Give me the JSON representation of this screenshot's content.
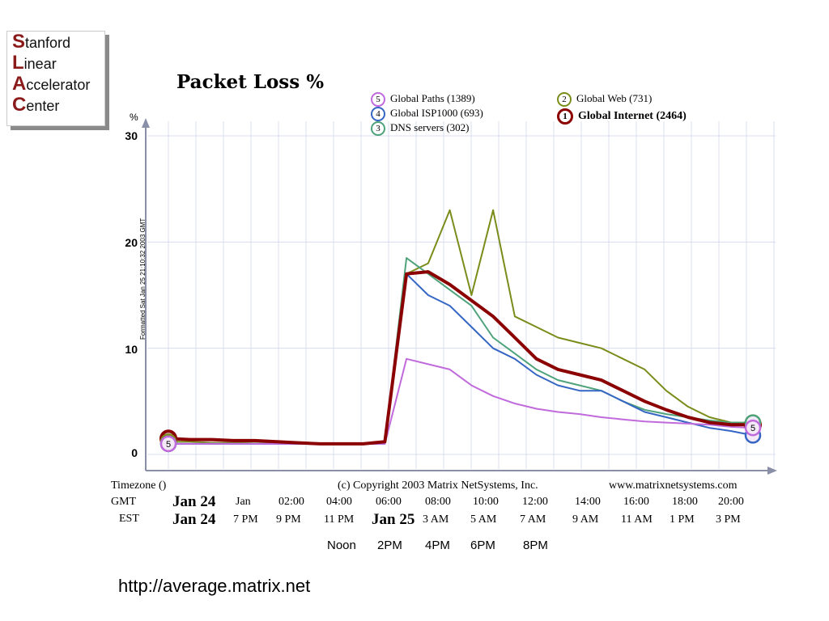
{
  "logo": {
    "lines": [
      {
        "cap": "S",
        "rest": "tanford"
      },
      {
        "cap": "L",
        "rest": "inear"
      },
      {
        "cap": "A",
        "rest": "ccelerator"
      },
      {
        "cap": "C",
        "rest": "enter"
      }
    ]
  },
  "chart_data": {
    "type": "line",
    "title": "Packet Loss %",
    "ylabel": "%",
    "ylim": [
      0,
      30
    ],
    "yticks": [
      "0",
      "10",
      "20",
      "30"
    ],
    "side_note": "Formatted Sat Jan 25 21:10:32 2003 GMT",
    "x_hours": [
      0,
      1,
      2,
      3,
      4,
      5,
      6,
      7,
      8,
      9,
      10,
      11,
      12,
      13,
      14,
      15,
      16,
      17,
      18,
      19,
      20,
      21,
      22,
      23,
      24,
      25,
      26,
      27
    ],
    "series": [
      {
        "name": "Global Internet (2464)",
        "badge": "1",
        "color": "#8b0000",
        "width": 4,
        "values": [
          1.5,
          1.4,
          1.4,
          1.3,
          1.3,
          1.2,
          1.1,
          1.0,
          1.0,
          1.0,
          1.2,
          17.0,
          17.2,
          16.0,
          14.5,
          13.0,
          11.0,
          9.0,
          8.0,
          7.5,
          7.0,
          6.0,
          5.0,
          4.2,
          3.5,
          3.0,
          2.8,
          2.8
        ]
      },
      {
        "name": "Global Web (731)",
        "badge": "2",
        "color": "#7a8c1a",
        "width": 2,
        "values": [
          1.2,
          1.2,
          1.1,
          1.1,
          1.2,
          1.1,
          1.0,
          1.0,
          1.0,
          1.0,
          1.2,
          17.0,
          18.0,
          23.0,
          15.0,
          23.0,
          13.0,
          12.0,
          11.0,
          10.5,
          10.0,
          9.0,
          8.0,
          6.0,
          4.5,
          3.5,
          3.0,
          3.0
        ]
      },
      {
        "name": "DNS servers (302)",
        "badge": "3",
        "color": "#4fa37a",
        "width": 2,
        "values": [
          1.0,
          1.0,
          1.0,
          1.0,
          1.0,
          1.0,
          1.0,
          1.0,
          1.0,
          1.0,
          1.2,
          18.5,
          17.0,
          15.5,
          14.0,
          11.0,
          9.5,
          8.0,
          7.0,
          6.5,
          6.0,
          5.0,
          4.2,
          3.8,
          3.5,
          3.2,
          3.0,
          3.0
        ]
      },
      {
        "name": "Global ISP1000 (693)",
        "badge": "4",
        "color": "#3566c4",
        "width": 2,
        "values": [
          1.0,
          1.0,
          1.0,
          1.0,
          1.0,
          1.0,
          1.0,
          1.0,
          1.0,
          1.0,
          1.0,
          17.0,
          15.0,
          14.0,
          12.0,
          10.0,
          9.0,
          7.5,
          6.5,
          6.0,
          6.0,
          5.0,
          4.0,
          3.5,
          3.0,
          2.5,
          2.2,
          1.8
        ]
      },
      {
        "name": "Global Paths (1389)",
        "badge": "5",
        "color": "#c06adc",
        "width": 2,
        "values": [
          1.0,
          1.0,
          1.0,
          1.0,
          1.0,
          1.0,
          1.0,
          1.0,
          1.0,
          1.0,
          1.0,
          9.0,
          8.5,
          8.0,
          6.5,
          5.5,
          4.8,
          4.3,
          4.0,
          3.8,
          3.5,
          3.3,
          3.1,
          3.0,
          2.9,
          2.8,
          2.6,
          2.5
        ]
      }
    ],
    "legend_placement": "top"
  },
  "copyright": "(c) Copyright 2003 Matrix NetSystems, Inc.",
  "site": "www.matrixnetsystems.com",
  "timezone_label": "Timezone ()",
  "gmt_label": "GMT",
  "est_label": "EST",
  "gmt_row": [
    "Jan 24",
    "Jan",
    "02:00",
    "04:00",
    "06:00",
    "08:00",
    "10:00",
    "12:00",
    "14:00",
    "16:00",
    "18:00",
    "20:00"
  ],
  "est_row": [
    "Jan 24",
    "7 PM",
    "9 PM",
    "11 PM",
    "Jan 25",
    "3 AM",
    "5 AM",
    "7 AM",
    "9 AM",
    "11 AM",
    "1 PM",
    "3 PM"
  ],
  "local_row": [
    "Noon",
    "2PM",
    "4PM",
    "6PM",
    "8PM"
  ],
  "url": "http://average.matrix.net"
}
